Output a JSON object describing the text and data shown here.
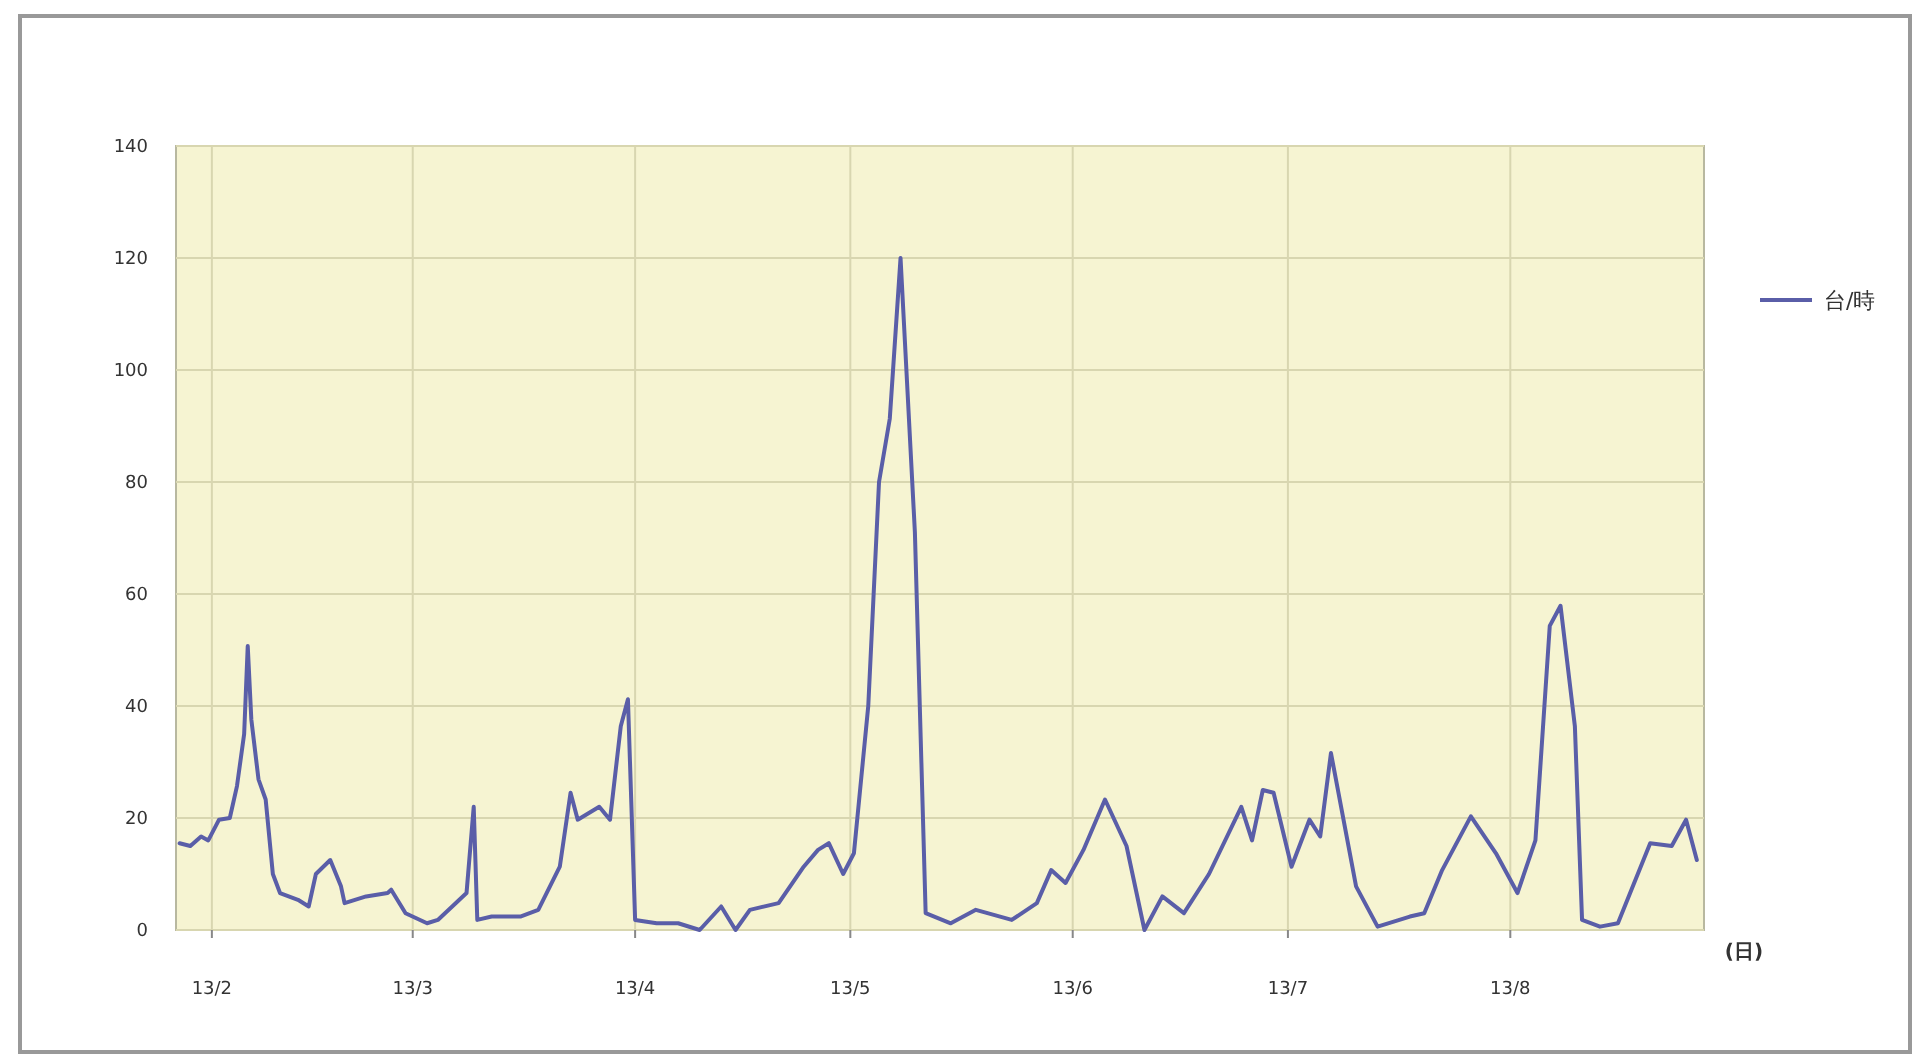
{
  "chart_data": {
    "type": "line",
    "xlabel": "(日)",
    "xlim": [
      "--01-27",
      "--08-28"
    ],
    "ylim": [
      0,
      140
    ],
    "yticks": [
      0,
      20,
      40,
      60,
      80,
      100,
      120,
      140
    ],
    "xticks": [
      {
        "value": "--02-01",
        "label": "13/2"
      },
      {
        "value": "--03-01",
        "label": "13/3"
      },
      {
        "value": "--04-01",
        "label": "13/4"
      },
      {
        "value": "--05-01",
        "label": "13/5"
      },
      {
        "value": "--06-01",
        "label": "13/6"
      },
      {
        "value": "--07-01",
        "label": "13/7"
      },
      {
        "value": "--08-01",
        "label": "13/8"
      }
    ],
    "grid": true,
    "legend": "right",
    "marker": "none",
    "line_style": "solid",
    "series": [
      {
        "name": "台/時",
        "color": "#5a5ea8",
        "x": [
          "--01-27T12:00",
          "--01-29",
          "--01-30T12:00",
          "--01-31T12:00",
          "--02-02",
          "--02-03T12:00",
          "--02-04T12:00",
          "--02-05T12:00",
          "--02-06",
          "--02-06T12:00",
          "--02-07T12:00",
          "--02-08T12:00",
          "--02-09T12:00",
          "--02-10T12:00",
          "--02-13",
          "--02-14T12:00",
          "--02-15T12:00",
          "--02-17T12:00",
          "--02-19",
          "--02-19T12:00",
          "--02-22T12:00",
          "--02-25T12:00",
          "--02-26",
          "--02-28",
          "--03-03",
          "--03-04T12:00",
          "--03-06T12:00",
          "--03-08T12:00",
          "--03-09T12:00",
          "--03-10",
          "--03-12",
          "--03-16",
          "--03-18T12:00",
          "--03-21T12:00",
          "--03-23",
          "--03-24",
          "--03-27",
          "--03-28T12:00",
          "--03-30",
          "--03-31",
          "--04-01",
          "--04-04",
          "--04-07",
          "--04-10",
          "--04-13",
          "--04-15",
          "--04-17",
          "--04-21",
          "--04-24T12:00",
          "--04-26T12:00",
          "--04-28",
          "--04-30",
          "--05-01T12:00",
          "--05-03T12:00",
          "--05-05",
          "--05-06T12:00",
          "--05-08",
          "--05-10",
          "--05-11T12:00",
          "--05-15",
          "--05-18T12:00",
          "--05-23T12:00",
          "--05-27",
          "--05-29",
          "--05-31",
          "--06-02T12:00",
          "--06-05T12:00",
          "--06-08T12:00",
          "--06-11",
          "--06-13T12:00",
          "--06-16T12:00",
          "--06-20",
          "--06-24T12:00",
          "--06-26",
          "--06-27T12:00",
          "--06-29",
          "--07-01T12:00",
          "--07-04",
          "--07-05T12:00",
          "--07-07",
          "--07-10T12:00",
          "--07-13T12:00",
          "--07-18",
          "--07-20",
          "--07-22T12:00",
          "--07-26T12:00",
          "--07-30",
          "--08-02",
          "--08-04T12:00",
          "--08-06T12:00",
          "--08-08",
          "--08-10",
          "--08-11",
          "--08-13T12:00",
          "--08-16",
          "--08-20T12:00",
          "--08-23T12:00",
          "--08-25T12:00",
          "--08-27"
        ],
        "values": [
          15.5,
          15,
          16.7,
          16,
          19.7,
          20,
          25.7,
          35,
          50.7,
          37.6,
          26.9,
          23.3,
          10,
          6.6,
          5.4,
          4.2,
          10,
          12.5,
          7.8,
          4.8,
          6,
          6.6,
          7.2,
          3,
          1.2,
          1.8,
          4.2,
          6.6,
          22,
          1.8,
          2.4,
          2.4,
          3.6,
          11.3,
          24.5,
          19.7,
          22,
          19.7,
          36.4,
          41.2,
          1.8,
          1.2,
          1.2,
          0,
          4.2,
          0,
          3.6,
          4.8,
          11.3,
          14.3,
          15.5,
          10,
          13.7,
          40,
          80,
          91.3,
          120,
          71,
          3,
          1.2,
          3.6,
          1.8,
          4.8,
          10.7,
          8.4,
          14.3,
          23.3,
          15,
          0,
          6,
          3,
          10,
          22,
          16,
          25,
          24.5,
          11.3,
          19.7,
          16.7,
          31.6,
          7.8,
          0.6,
          2.4,
          3,
          10.7,
          20.3,
          13.7,
          6.6,
          16,
          54.3,
          57.9,
          36.4,
          1.8,
          0.6,
          1.2,
          15.5,
          15,
          19.7,
          12.5
        ]
      }
    ]
  }
}
